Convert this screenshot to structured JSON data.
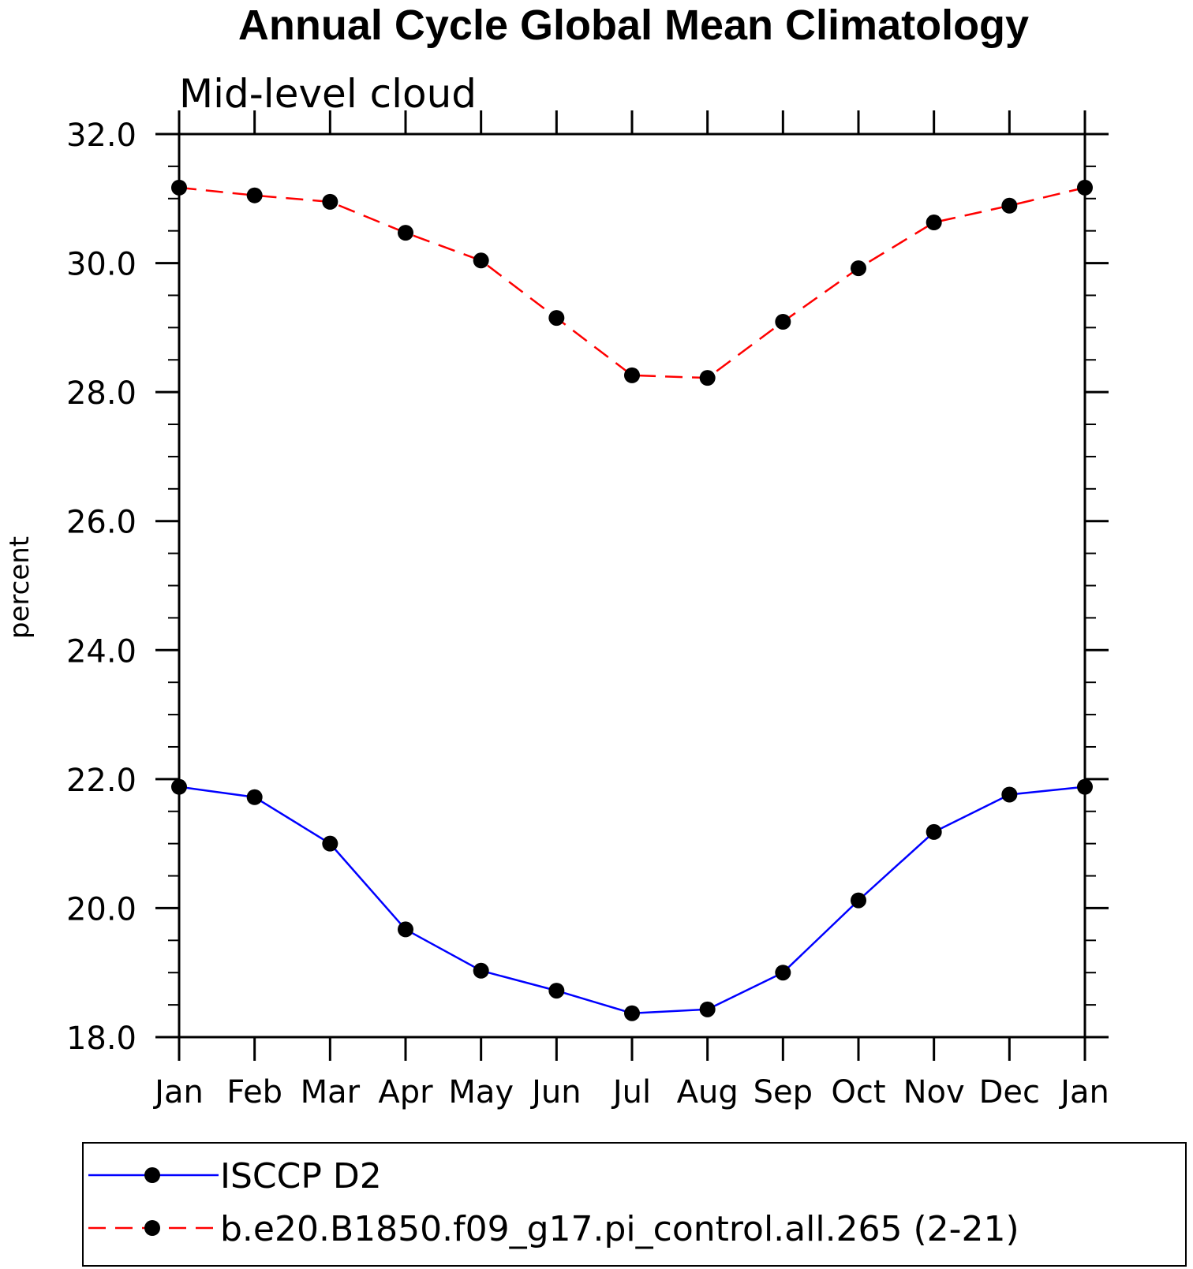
{
  "chart_data": {
    "type": "line",
    "title": "Annual Cycle Global Mean Climatology",
    "subtitle": "Mid-level cloud",
    "xlabel": "",
    "ylabel": "percent",
    "categories": [
      "Jan",
      "Feb",
      "Mar",
      "Apr",
      "May",
      "Jun",
      "Jul",
      "Aug",
      "Sep",
      "Oct",
      "Nov",
      "Dec",
      "Jan"
    ],
    "ylim": [
      18.0,
      32.0
    ],
    "y_ticks": [
      "18.0",
      "20.0",
      "22.0",
      "24.0",
      "26.0",
      "28.0",
      "30.0",
      "32.0"
    ],
    "y_minor_step": 0.5,
    "grid": false,
    "legend_position": "bottom",
    "series": [
      {
        "name": "ISCCP D2",
        "color": "#0000ff",
        "line_style": "solid",
        "marker": "filled-circle",
        "values": [
          21.88,
          21.72,
          21.0,
          19.67,
          19.03,
          18.72,
          18.37,
          18.43,
          19.0,
          20.12,
          21.18,
          21.76,
          21.88
        ]
      },
      {
        "name": "b.e20.B1850.f09_g17.pi_control.all.265 (2-21)",
        "color": "#ff0000",
        "line_style": "dashed",
        "marker": "filled-circle",
        "values": [
          31.17,
          31.05,
          30.95,
          30.47,
          30.04,
          29.15,
          28.26,
          28.22,
          29.09,
          29.92,
          30.63,
          30.89,
          31.17
        ]
      }
    ]
  }
}
